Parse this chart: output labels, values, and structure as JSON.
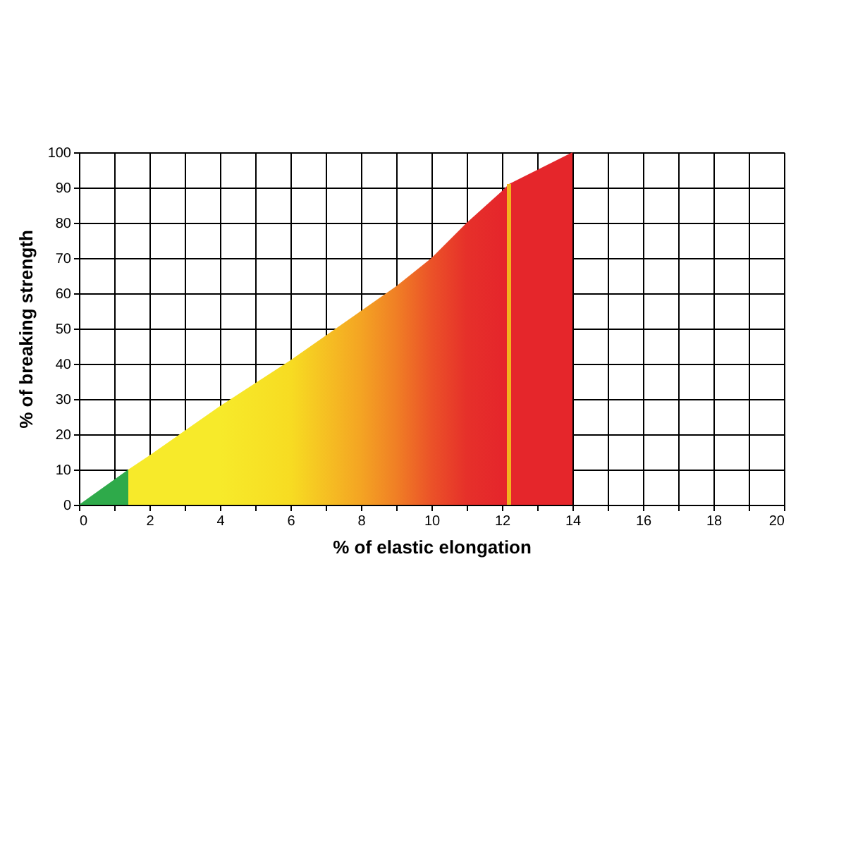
{
  "chart_data": {
    "type": "area",
    "xlabel": "% of elastic elongation",
    "ylabel": "% of breaking strength",
    "xlim": [
      0,
      20
    ],
    "ylim": [
      0,
      100
    ],
    "xticks": [
      0,
      {
        "value": 1,
        "label": null
      },
      2,
      {
        "value": 3,
        "label": null
      },
      4,
      {
        "value": 5,
        "label": null
      },
      6,
      {
        "value": 7,
        "label": null
      },
      8,
      {
        "value": 9,
        "label": null
      },
      10,
      {
        "value": 11,
        "label": null
      },
      12,
      {
        "value": 13,
        "label": null
      },
      14,
      {
        "value": 15,
        "label": null
      },
      16,
      {
        "value": 17,
        "label": null
      },
      18,
      {
        "value": 19,
        "label": null
      },
      20
    ],
    "yticks": [
      0,
      10,
      20,
      30,
      40,
      50,
      60,
      70,
      80,
      90,
      100
    ],
    "grid": true,
    "series": [
      {
        "color": "#2eaa4a",
        "x": [
          0,
          1.4
        ],
        "values": [
          0,
          10
        ]
      },
      {
        "color": "#f7ea2a",
        "x": [
          1.4,
          2,
          4,
          6,
          8,
          9,
          10,
          11,
          12,
          12.2,
          14
        ],
        "values": [
          10,
          14,
          28,
          41,
          55,
          62,
          70,
          80,
          89,
          91,
          100
        ],
        "colors": [
          "#f7ea2a",
          "#f7ea2a",
          "#f7ea2a",
          "#f7dc22",
          "#f4a423",
          "#f07f25",
          "#eb5228",
          "#e6302a",
          "#e5262b",
          "#e5262b",
          "#e5262b"
        ]
      }
    ],
    "ref_lines": [
      {
        "axis": "x",
        "value": 12.2,
        "color": "#f2b31e"
      }
    ]
  }
}
